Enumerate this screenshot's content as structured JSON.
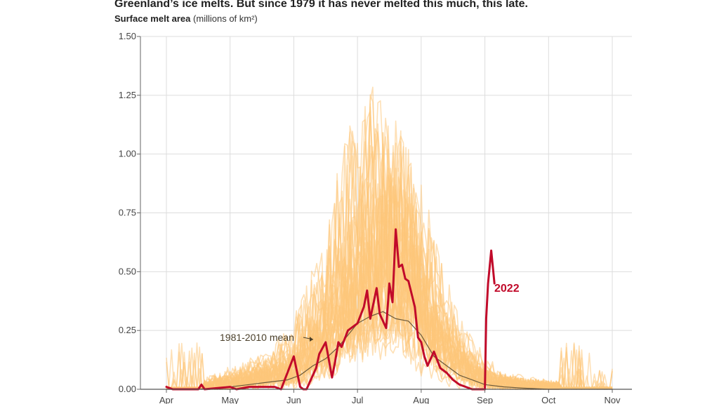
{
  "title": "Greenland’s ice melts. But since 1979 it has never melted this much, this late.",
  "subtitle": {
    "label": "Surface melt area",
    "units": "(millions of km²)"
  },
  "colors": {
    "history": "#fdc67a",
    "mean": "#6b5a3c",
    "highlight": "#c10a2a",
    "grid": "#dddddd"
  },
  "chart_data": {
    "type": "line",
    "title": "Greenland’s ice melts. But since 1979 it has never melted this much, this late.",
    "ylabel": "Surface melt area (millions of km²)",
    "xlabel": "",
    "ylim": [
      0,
      1.5
    ],
    "yticks": [
      "0.00",
      "0.25",
      "0.50",
      "0.75",
      "1.00",
      "1.25",
      "1.50"
    ],
    "xlim": [
      0,
      7
    ],
    "x_unit": "months since April 1",
    "x_ticks": [
      {
        "v": 0,
        "label": "Apr"
      },
      {
        "v": 1,
        "label": "May"
      },
      {
        "v": 2,
        "label": "Jun"
      },
      {
        "v": 3,
        "label": "Jul"
      },
      {
        "v": 4,
        "label": "Aug"
      },
      {
        "v": 5,
        "label": "Sep"
      },
      {
        "v": 6,
        "label": "Oct"
      },
      {
        "v": 7,
        "label": "Nov"
      }
    ],
    "grid": true,
    "series": [
      {
        "name": "1981-2010 mean",
        "x": [
          0,
          0.5,
          1,
          1.3,
          1.6,
          1.9,
          2.1,
          2.3,
          2.5,
          2.7,
          2.85,
          3.0,
          3.2,
          3.4,
          3.6,
          3.8,
          4.0,
          4.2,
          4.4,
          4.6,
          4.8,
          5.0,
          5.3,
          5.6,
          6.0,
          6.5,
          7.0
        ],
        "y": [
          0.0,
          0.0,
          0.01,
          0.02,
          0.03,
          0.04,
          0.06,
          0.1,
          0.13,
          0.18,
          0.23,
          0.28,
          0.31,
          0.33,
          0.3,
          0.29,
          0.23,
          0.14,
          0.1,
          0.06,
          0.04,
          0.02,
          0.01,
          0.005,
          0.0,
          0.0,
          0.0
        ]
      },
      {
        "name": "2022",
        "x": [
          0,
          0.1,
          0.2,
          0.5,
          0.55,
          0.6,
          1.0,
          1.1,
          1.3,
          1.7,
          1.8,
          2.0,
          2.1,
          2.15,
          2.2,
          2.35,
          2.4,
          2.5,
          2.6,
          2.65,
          2.7,
          2.75,
          2.85,
          3.0,
          3.1,
          3.15,
          3.2,
          3.3,
          3.35,
          3.45,
          3.5,
          3.55,
          3.6,
          3.65,
          3.7,
          3.75,
          3.8,
          3.9,
          3.95,
          4.0,
          4.05,
          4.1,
          4.2,
          4.3,
          4.4,
          4.5,
          4.6,
          4.7,
          4.8,
          4.85,
          5.0,
          5.02,
          5.05,
          5.1,
          5.15
        ],
        "y": [
          0.01,
          0.0,
          0.0,
          0.0,
          0.02,
          0.0,
          0.01,
          0.0,
          0.01,
          0.01,
          0.0,
          0.14,
          0.01,
          0.0,
          0.0,
          0.09,
          0.15,
          0.2,
          0.05,
          0.12,
          0.2,
          0.18,
          0.25,
          0.28,
          0.35,
          0.42,
          0.3,
          0.43,
          0.32,
          0.26,
          0.45,
          0.37,
          0.68,
          0.52,
          0.53,
          0.47,
          0.46,
          0.35,
          0.22,
          0.2,
          0.14,
          0.1,
          0.16,
          0.09,
          0.07,
          0.04,
          0.02,
          0.01,
          0.0,
          0.0,
          0.0,
          0.3,
          0.45,
          0.59,
          0.45
        ]
      }
    ],
    "annotations": [
      {
        "text": "1981-2010 mean",
        "series": "1981-2010 mean"
      },
      {
        "text": "2022",
        "series": "2022"
      }
    ]
  }
}
